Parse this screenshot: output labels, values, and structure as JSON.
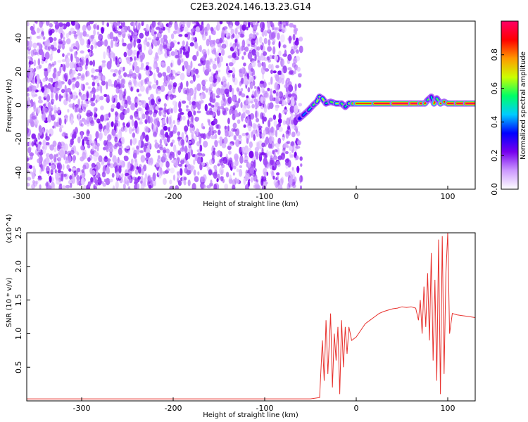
{
  "title": "C2E3.2024.146.13.23.G14",
  "chart_data": [
    {
      "type": "heatmap",
      "xlabel": "Height of straight line (km)",
      "ylabel": "Frequency (Hz)",
      "xlim": [
        -360,
        130
      ],
      "ylim": [
        -50,
        50
      ],
      "x_ticks": [
        -300,
        -200,
        -100,
        0,
        100
      ],
      "x_tick_labels": [
        "-300",
        "-200",
        "-100",
        "0",
        "100"
      ],
      "y_ticks": [
        -40,
        -20,
        0,
        20,
        40
      ],
      "y_tick_labels": [
        "-40",
        "-20",
        "0",
        "20",
        "40"
      ],
      "noise_region_x": [
        -360,
        -60
      ],
      "ridge": {
        "x": [
          -62,
          -58,
          -52,
          -47,
          -43,
          -40,
          -37,
          -33,
          -28,
          -22,
          -16,
          -12,
          -8,
          -4,
          0,
          20,
          40,
          60,
          70,
          75,
          78,
          82,
          85,
          88,
          92,
          96,
          100,
          110,
          120,
          130
        ],
        "y": [
          -8,
          -6,
          -3,
          0,
          2,
          5,
          4,
          1,
          2,
          1,
          1,
          -1,
          1,
          1,
          1,
          1,
          1,
          1,
          1,
          1,
          3,
          5,
          1,
          4,
          1,
          2,
          1,
          1,
          1,
          1
        ],
        "amplitude": [
          0.3,
          0.4,
          0.5,
          0.6,
          0.65,
          0.7,
          0.65,
          0.55,
          0.6,
          0.65,
          0.6,
          0.55,
          0.7,
          0.8,
          0.85,
          0.95,
          0.98,
          0.98,
          0.95,
          0.9,
          0.6,
          0.5,
          0.85,
          0.6,
          0.85,
          0.9,
          0.95,
          0.97,
          0.98,
          0.98
        ]
      },
      "colorbar": {
        "label": "Normalized spectral amplitude",
        "range": [
          0,
          1
        ],
        "ticks": [
          0.0,
          0.2,
          0.4,
          0.6,
          0.8
        ],
        "tick_labels": [
          "0.0",
          "0.2",
          "0.4",
          "0.6",
          "0.8"
        ],
        "colors": [
          "#ffffff",
          "#cc99ff",
          "#7700ee",
          "#0000ff",
          "#00ccff",
          "#00ff66",
          "#ccff00",
          "#ff9900",
          "#ff0000",
          "#ff0066"
        ]
      }
    },
    {
      "type": "line",
      "xlabel": "Height of straight line (km)",
      "ylabel": "SNR (10 * v/v)",
      "scale_label": "(x10^4)",
      "xlim": [
        -360,
        130
      ],
      "ylim": [
        0,
        2.5
      ],
      "x_ticks": [
        -300,
        -200,
        -100,
        0,
        100
      ],
      "x_tick_labels": [
        "-300",
        "-200",
        "-100",
        "0",
        "100"
      ],
      "y_ticks": [
        0.5,
        1.0,
        1.5,
        2.0,
        2.5
      ],
      "y_tick_labels": [
        "0.5",
        "1.0",
        "1.5",
        "2.0",
        "2.5"
      ],
      "color": "#e8322e",
      "series": [
        {
          "x": [
            -360,
            -300,
            -200,
            -100,
            -50,
            -40,
            -37,
            -35,
            -33,
            -31,
            -28,
            -26,
            -24,
            -22,
            -20,
            -18,
            -16,
            -14,
            -12,
            -10,
            -8,
            -5,
            0,
            5,
            10,
            15,
            20,
            25,
            30,
            35,
            40,
            45,
            50,
            55,
            60,
            65,
            68,
            70,
            72,
            74,
            76,
            78,
            80,
            82,
            84,
            86,
            88,
            90,
            92,
            94,
            96,
            98,
            100,
            102,
            105,
            110,
            115,
            120,
            125,
            130
          ],
          "y": [
            0.03,
            0.03,
            0.03,
            0.03,
            0.03,
            0.05,
            0.9,
            0.3,
            1.2,
            0.4,
            1.3,
            0.2,
            1.0,
            0.6,
            1.1,
            0.1,
            1.2,
            0.5,
            1.1,
            0.7,
            1.1,
            0.9,
            0.95,
            1.05,
            1.15,
            1.2,
            1.25,
            1.3,
            1.33,
            1.35,
            1.37,
            1.38,
            1.4,
            1.39,
            1.4,
            1.38,
            1.2,
            1.5,
            1.0,
            1.7,
            1.1,
            1.9,
            0.9,
            2.2,
            0.6,
            1.8,
            0.3,
            2.4,
            0.1,
            2.45,
            0.4,
            1.9,
            2.5,
            1.0,
            1.3,
            1.28,
            1.27,
            1.26,
            1.25,
            1.24
          ]
        }
      ]
    }
  ]
}
